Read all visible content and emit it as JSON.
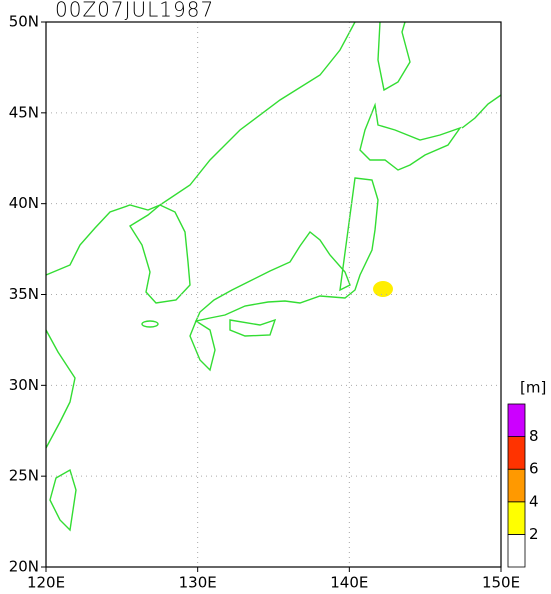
{
  "title": "00Z07JUL1987",
  "x_axis": {
    "labels": [
      "120E",
      "130E",
      "140E",
      "150E"
    ]
  },
  "y_axis": {
    "labels": [
      "20N",
      "25N",
      "30N",
      "35N",
      "40N",
      "45N",
      "50N"
    ]
  },
  "colorbar": {
    "unit": "[m]",
    "labels": [
      "2",
      "4",
      "6",
      "8"
    ],
    "colors": [
      "#ffffff",
      "#ffff00",
      "#ff9900",
      "#ff3300",
      "#cc00ff"
    ]
  },
  "field_color": "#ffee00",
  "coast_color": "#33dd33"
}
